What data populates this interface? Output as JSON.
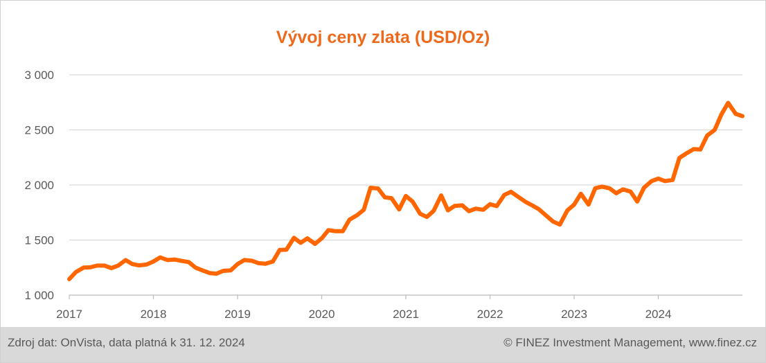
{
  "chart_data": {
    "type": "line",
    "title": "Vývoj ceny zlata (USD/Oz)",
    "xlabel": "",
    "ylabel": "",
    "ylim": [
      1000,
      3000
    ],
    "xlim": [
      2017.0,
      2025.0
    ],
    "y_ticks": [
      "1 000",
      "1 500",
      "2 000",
      "2 500",
      "3 000"
    ],
    "y_tick_values": [
      1000,
      1500,
      2000,
      2500,
      3000
    ],
    "x_ticks": [
      "2017",
      "2018",
      "2019",
      "2020",
      "2021",
      "2022",
      "2023",
      "2024"
    ],
    "x_tick_values": [
      2017,
      2018,
      2019,
      2020,
      2021,
      2022,
      2023,
      2024
    ],
    "grid": "horizontal",
    "legend": "none",
    "color": "#ff6600",
    "series": [
      {
        "x": [
          2017.0,
          2017.08,
          2017.17,
          2017.25,
          2017.33,
          2017.42,
          2017.5,
          2017.58,
          2017.67,
          2017.75,
          2017.83,
          2017.92,
          2018.0,
          2018.08,
          2018.17,
          2018.25,
          2018.33,
          2018.42,
          2018.5,
          2018.58,
          2018.67,
          2018.75,
          2018.83,
          2018.92,
          2019.0,
          2019.08,
          2019.17,
          2019.25,
          2019.33,
          2019.42,
          2019.5,
          2019.58,
          2019.67,
          2019.75,
          2019.83,
          2019.92,
          2020.0,
          2020.08,
          2020.17,
          2020.25,
          2020.33,
          2020.42,
          2020.5,
          2020.58,
          2020.67,
          2020.75,
          2020.83,
          2020.92,
          2021.0,
          2021.08,
          2021.17,
          2021.25,
          2021.33,
          2021.42,
          2021.5,
          2021.58,
          2021.67,
          2021.75,
          2021.83,
          2021.92,
          2022.0,
          2022.08,
          2022.17,
          2022.25,
          2022.33,
          2022.42,
          2022.5,
          2022.58,
          2022.67,
          2022.75,
          2022.83,
          2022.92,
          2023.0,
          2023.08,
          2023.17,
          2023.25,
          2023.33,
          2023.42,
          2023.5,
          2023.58,
          2023.67,
          2023.75,
          2023.83,
          2023.92,
          2024.0,
          2024.08,
          2024.17,
          2024.25,
          2024.33,
          2024.42,
          2024.5,
          2024.58,
          2024.67,
          2024.75,
          2024.83,
          2024.92,
          2025.0
        ],
        "values": [
          1145,
          1210,
          1250,
          1252,
          1268,
          1268,
          1245,
          1268,
          1318,
          1282,
          1270,
          1278,
          1305,
          1342,
          1318,
          1323,
          1312,
          1300,
          1250,
          1225,
          1200,
          1195,
          1220,
          1225,
          1282,
          1318,
          1312,
          1290,
          1285,
          1305,
          1410,
          1412,
          1520,
          1475,
          1515,
          1465,
          1515,
          1590,
          1580,
          1580,
          1685,
          1725,
          1775,
          1975,
          1968,
          1888,
          1880,
          1778,
          1900,
          1850,
          1738,
          1710,
          1765,
          1905,
          1770,
          1810,
          1815,
          1762,
          1785,
          1775,
          1825,
          1808,
          1910,
          1938,
          1895,
          1848,
          1815,
          1780,
          1720,
          1668,
          1640,
          1770,
          1822,
          1920,
          1822,
          1970,
          1985,
          1970,
          1925,
          1960,
          1940,
          1850,
          1975,
          2035,
          2058,
          2035,
          2045,
          2245,
          2285,
          2325,
          2322,
          2448,
          2500,
          2640,
          2745,
          2645,
          2625
        ]
      }
    ]
  },
  "footer": {
    "source": "Zdroj dat: OnVista, data platná k 31. 12. 2024",
    "copyright": "© FINEZ Investment Management, www.finez.cz"
  }
}
